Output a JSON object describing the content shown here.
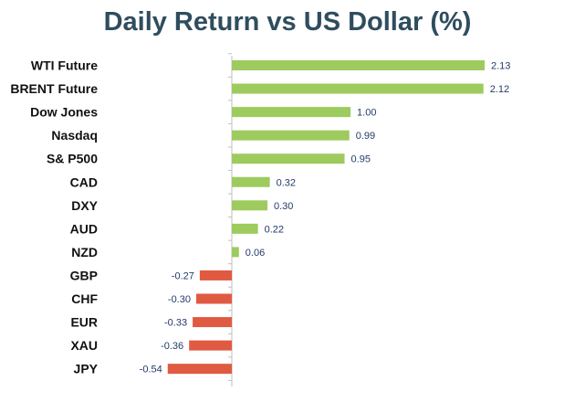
{
  "chart_data": {
    "type": "bar",
    "orientation": "horizontal",
    "title": "Daily Return vs US Dollar (%)",
    "xlabel": "",
    "ylabel": "",
    "categories": [
      "WTI Future",
      "BRENT Future",
      "Dow Jones",
      "Nasdaq",
      "S& P500",
      "CAD",
      "DXY",
      "AUD",
      "NZD",
      "GBP",
      "CHF",
      "EUR",
      "XAU",
      "JPY"
    ],
    "values": [
      2.13,
      2.12,
      1.0,
      0.99,
      0.95,
      0.32,
      0.3,
      0.22,
      0.06,
      -0.27,
      -0.3,
      -0.33,
      -0.36,
      -0.54
    ],
    "value_labels": [
      "2.13",
      "2.12",
      "1.00",
      "0.99",
      "0.95",
      "0.32",
      "0.30",
      "0.22",
      "0.06",
      "-0.27",
      "-0.30",
      "-0.33",
      "-0.36",
      "-0.54"
    ],
    "xlim": [
      -0.54,
      2.13
    ],
    "grid": false,
    "legend": "none"
  },
  "colors": {
    "title": "#2f4d5e",
    "positive_bar": "#9dcb5e",
    "negative_bar": "#e05a42",
    "value_label": "#243a6b",
    "axis_line": "#bfbfbf",
    "category_label": "#111111"
  }
}
